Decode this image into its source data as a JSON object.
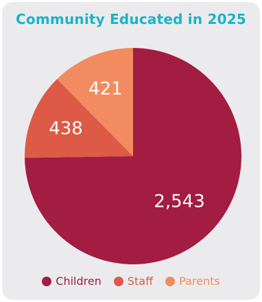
{
  "title_color": "#19b5c8",
  "chart_data": {
    "type": "pie",
    "title": "Community Educated in 2025",
    "categories": [
      "Children",
      "Staff",
      "Parents"
    ],
    "values": [
      2543,
      438,
      421
    ],
    "value_labels": [
      "2,543",
      "438",
      "421"
    ],
    "colors": [
      "#a31c42",
      "#dc5a46",
      "#f28c60"
    ],
    "legend_position": "bottom"
  }
}
